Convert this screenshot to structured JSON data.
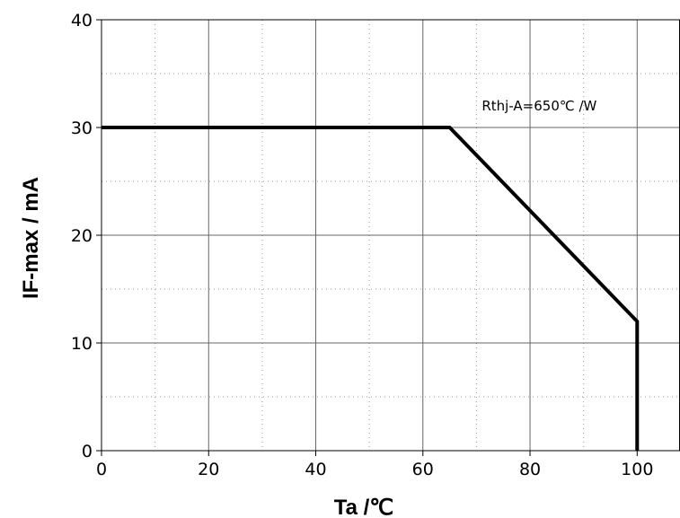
{
  "chart_data": {
    "type": "line",
    "xlabel": "Ta /℃",
    "ylabel": "IF-max / mA",
    "xlim": [
      0,
      108
    ],
    "ylim": [
      0,
      40
    ],
    "x_ticks": [
      0,
      20,
      40,
      60,
      80,
      100
    ],
    "y_ticks": [
      0,
      10,
      20,
      30,
      40
    ],
    "x_tick_labels": [
      "0",
      "20",
      "40",
      "60",
      "80",
      "100"
    ],
    "y_tick_labels": [
      "0",
      "10",
      "20",
      "30",
      "40"
    ],
    "grid": true,
    "minor_grid": "dotted",
    "series": [
      {
        "x": [
          0,
          65,
          100,
          100
        ],
        "y": [
          30,
          30,
          12,
          0
        ]
      }
    ],
    "annotations": [
      {
        "text": "Rthj-A=650℃ /W",
        "x": 71,
        "y": 32
      }
    ]
  }
}
